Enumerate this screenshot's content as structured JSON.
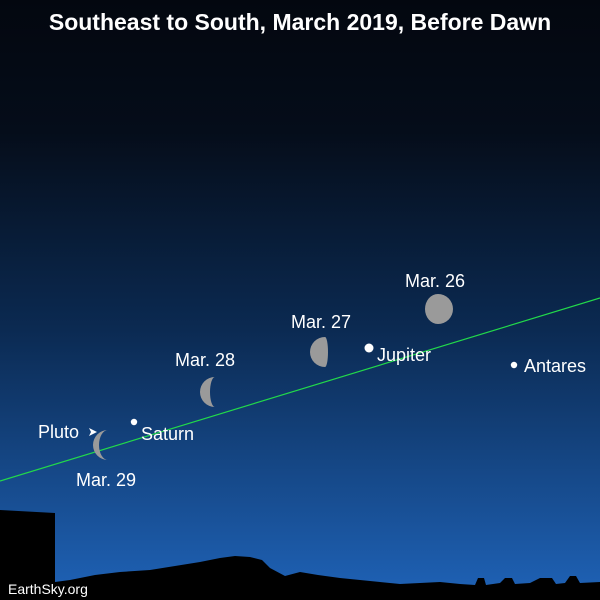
{
  "title": "Southeast to South, March 2019, Before Dawn",
  "credit": "EarthSky.org",
  "colors": {
    "sky_top": "#03070f",
    "sky_mid": "#0b2a52",
    "sky_bottom": "#1f63b8",
    "ecliptic": "#22d94a",
    "moon": "#9a9a9a",
    "text": "#ffffff"
  },
  "moons": [
    {
      "label": "Mar. 26",
      "phase": "waning-gibbous"
    },
    {
      "label": "Mar. 27",
      "phase": "last-quarter"
    },
    {
      "label": "Mar. 28",
      "phase": "last-quarter"
    },
    {
      "label": "Mar. 29",
      "phase": "waning-crescent"
    }
  ],
  "objects": [
    {
      "label": "Jupiter",
      "kind": "planet"
    },
    {
      "label": "Saturn",
      "kind": "planet"
    },
    {
      "label": "Pluto",
      "kind": "dwarf-planet"
    },
    {
      "label": "Antares",
      "kind": "star"
    }
  ]
}
